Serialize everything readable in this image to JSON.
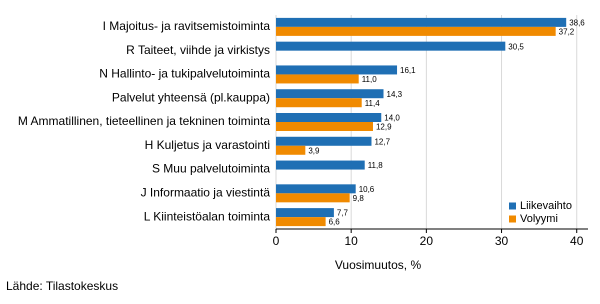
{
  "chart_data": {
    "type": "bar",
    "orientation": "horizontal",
    "categories": [
      "I Majoitus- ja ravitsemistoiminta",
      "R Taiteet, viihde ja virkistys",
      "N Hallinto- ja tukipalvelutoiminta",
      "Palvelut yhteensä (pl.kauppa)",
      "M Ammatillinen, tieteellinen ja tekninen toiminta",
      "H Kuljetus ja varastointi",
      "S Muu palvelutoiminta",
      "J Informaatio ja viestintä",
      "L Kiinteistöalan toiminta"
    ],
    "series": [
      {
        "name": "Liikevaihto",
        "color": "#1f6fb4",
        "values": [
          38.6,
          30.5,
          16.1,
          14.3,
          14.0,
          12.7,
          11.8,
          10.6,
          7.7
        ],
        "value_labels": [
          "38,6",
          "30,5",
          "16,1",
          "14,3",
          "14,0",
          "12,7",
          "11,8",
          "10,6",
          "7,7"
        ]
      },
      {
        "name": "Volyymi",
        "color": "#f08a00",
        "values": [
          37.2,
          null,
          11.0,
          11.4,
          12.9,
          3.9,
          null,
          9.8,
          6.6
        ],
        "value_labels": [
          "37,2",
          null,
          "11,0",
          "11,4",
          "12,9",
          "3,9",
          null,
          "9,8",
          "6,6"
        ]
      }
    ],
    "xlim": [
      0,
      41.5
    ],
    "xticks": [
      0,
      10,
      20,
      30,
      40
    ],
    "grid": true,
    "xlabel": "Vuosimuutos, %",
    "legend": "bottom-right",
    "source": "Lähde: Tilastokeskus"
  }
}
